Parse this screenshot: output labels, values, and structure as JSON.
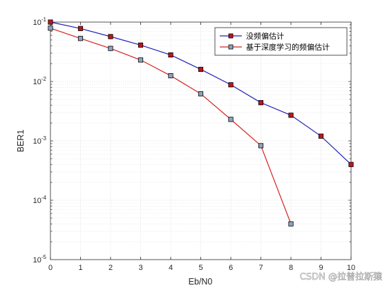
{
  "chart_data": {
    "type": "line",
    "xlabel": "Eb/N0",
    "ylabel": "BER1",
    "x_ticks": [
      "0",
      "1",
      "2",
      "3",
      "4",
      "5",
      "6",
      "7",
      "8",
      "9",
      "10"
    ],
    "y_scale": "log",
    "ylim": [
      1e-05,
      0.1
    ],
    "xlim": [
      0,
      10
    ],
    "y_ticks": [
      {
        "base": "10",
        "exp": "-1"
      },
      {
        "base": "10",
        "exp": "-2"
      },
      {
        "base": "10",
        "exp": "-3"
      },
      {
        "base": "10",
        "exp": "-4"
      },
      {
        "base": "10",
        "exp": "-5"
      }
    ],
    "grid": true,
    "legend_position": "top-right",
    "series": [
      {
        "name": "没频偏估计",
        "color": "#1f1fb8",
        "marker_color": "#c0141a",
        "x": [
          0,
          1,
          2,
          3,
          4,
          5,
          6,
          7,
          8,
          9,
          10
        ],
        "y": [
          0.1,
          0.078,
          0.057,
          0.041,
          0.028,
          0.016,
          0.0088,
          0.0044,
          0.0027,
          0.0012,
          0.0004
        ]
      },
      {
        "name": "基于深度学习的频偏估计",
        "color": "#d62020",
        "marker_color": "#8ea3bd",
        "x": [
          0,
          1,
          2,
          3,
          4,
          5,
          6,
          7,
          8
        ],
        "y": [
          0.079,
          0.053,
          0.036,
          0.023,
          0.0125,
          0.0062,
          0.0023,
          0.00083,
          4e-05
        ]
      }
    ]
  },
  "watermark": "CSDN @拉普拉斯猿"
}
